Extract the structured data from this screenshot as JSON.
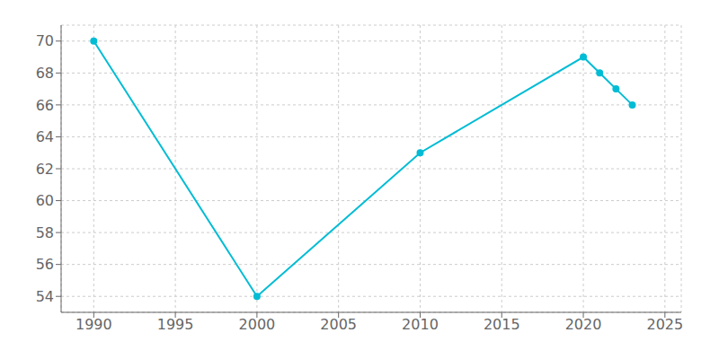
{
  "chart_data": {
    "type": "line",
    "x": [
      1990,
      2000,
      2010,
      2020,
      2021,
      2022,
      2023
    ],
    "values": [
      70,
      54,
      63,
      69,
      68,
      67,
      66
    ],
    "color": "#00BCD4",
    "marker": "circle",
    "xlim": [
      1988,
      2026
    ],
    "xticks": [
      1990,
      1995,
      2000,
      2005,
      2010,
      2015,
      2020,
      2025
    ],
    "ylim": [
      53,
      71
    ],
    "yticks": [
      54,
      56,
      58,
      60,
      62,
      64,
      66,
      68,
      70
    ],
    "grid": true
  }
}
